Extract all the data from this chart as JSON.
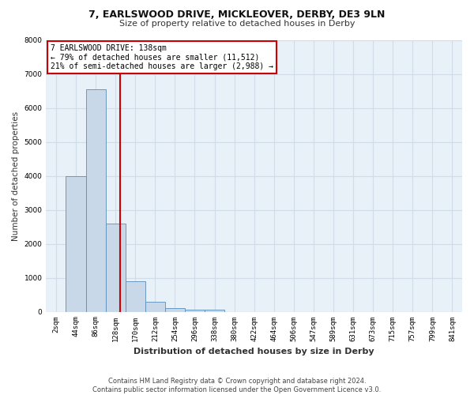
{
  "title1": "7, EARLSWOOD DRIVE, MICKLEOVER, DERBY, DE3 9LN",
  "title2": "Size of property relative to detached houses in Derby",
  "xlabel": "Distribution of detached houses by size in Derby",
  "ylabel": "Number of detached properties",
  "bar_labels": [
    "2sqm",
    "44sqm",
    "86sqm",
    "128sqm",
    "170sqm",
    "212sqm",
    "254sqm",
    "296sqm",
    "338sqm",
    "380sqm",
    "422sqm",
    "464sqm",
    "506sqm",
    "547sqm",
    "589sqm",
    "631sqm",
    "673sqm",
    "715sqm",
    "757sqm",
    "799sqm",
    "841sqm"
  ],
  "bar_values": [
    0,
    4000,
    6550,
    2600,
    900,
    300,
    100,
    50,
    50,
    0,
    0,
    0,
    0,
    0,
    0,
    0,
    0,
    0,
    0,
    0,
    0
  ],
  "bar_color": "#c8d8e8",
  "bar_edge_color": "#5b8db8",
  "marker_color": "#cc0000",
  "ylim": [
    0,
    8000
  ],
  "yticks": [
    0,
    1000,
    2000,
    3000,
    4000,
    5000,
    6000,
    7000,
    8000
  ],
  "annotation_title": "7 EARLSWOOD DRIVE: 138sqm",
  "annotation_line1": "← 79% of detached houses are smaller (11,512)",
  "annotation_line2": "21% of semi-detached houses are larger (2,988) →",
  "annotation_box_color": "#ffffff",
  "annotation_box_edge_color": "#cc0000",
  "grid_color": "#d0dce8",
  "bg_color": "#e8f0f8",
  "fig_bg_color": "#ffffff",
  "footer": "Contains HM Land Registry data © Crown copyright and database right 2024.\nContains public sector information licensed under the Open Government Licence v3.0.",
  "title1_fontsize": 9,
  "title2_fontsize": 8,
  "xlabel_fontsize": 8,
  "ylabel_fontsize": 7.5,
  "tick_fontsize": 6.5,
  "annot_fontsize": 7,
  "footer_fontsize": 6
}
